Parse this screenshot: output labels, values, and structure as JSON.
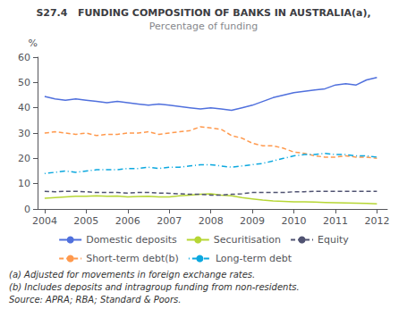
{
  "chart_data": {
    "type": "line",
    "title": "S27.4   FUNDING COMPOSITION OF BANKS IN AUSTRALIA(a),",
    "subtitle": "Percentage of funding",
    "y_label": "%",
    "footnotes": [
      "(a) Adjusted for movements in foreign exchange rates.",
      "(b) Includes deposits and intragroup funding from non-residents.",
      "Source: APRA; RBA; Standard & Poors."
    ],
    "xlim": [
      2003.83,
      2012.25
    ],
    "xticks": [
      2004,
      2005,
      2006,
      2007,
      2008,
      2009,
      2010,
      2011,
      2012
    ],
    "ylim": [
      0,
      60
    ],
    "yticks": [
      0,
      10,
      20,
      30,
      40,
      50,
      60
    ],
    "grid": false,
    "legend": "bottom",
    "x": [
      2004.0,
      2004.25,
      2004.5,
      2004.75,
      2005.0,
      2005.25,
      2005.5,
      2005.75,
      2006.0,
      2006.25,
      2006.5,
      2006.75,
      2007.0,
      2007.25,
      2007.5,
      2007.75,
      2008.0,
      2008.25,
      2008.5,
      2008.75,
      2009.0,
      2009.25,
      2009.5,
      2009.75,
      2010.0,
      2010.25,
      2010.5,
      2010.75,
      2011.0,
      2011.25,
      2011.5,
      2011.75,
      2012.0
    ],
    "series": [
      {
        "name": "Domestic deposits",
        "line_style": "solid",
        "values": [
          44.5,
          43.5,
          43.0,
          43.5,
          43.0,
          42.5,
          42.0,
          42.5,
          42.0,
          41.5,
          41.0,
          41.5,
          41.0,
          40.5,
          40.0,
          39.5,
          40.0,
          39.5,
          39.0,
          40.0,
          41.0,
          42.5,
          44.0,
          45.0,
          46.0,
          46.5,
          47.0,
          47.5,
          49.0,
          49.5,
          49.0,
          51.0,
          52.0
        ]
      },
      {
        "name": "Securitisation",
        "line_style": "solid",
        "values": [
          4.2,
          4.5,
          4.8,
          5.0,
          5.0,
          5.2,
          5.0,
          5.1,
          4.8,
          4.9,
          5.0,
          4.8,
          4.8,
          5.2,
          5.5,
          5.8,
          6.0,
          5.5,
          5.2,
          4.5,
          4.0,
          3.5,
          3.2,
          3.0,
          2.8,
          2.8,
          2.7,
          2.6,
          2.5,
          2.4,
          2.3,
          2.2,
          2.0
        ]
      },
      {
        "name": "Equity",
        "line_style": "dashed",
        "values": [
          7.0,
          6.8,
          7.0,
          7.0,
          6.8,
          6.5,
          6.5,
          6.5,
          6.3,
          6.5,
          6.5,
          6.3,
          6.2,
          6.0,
          5.8,
          5.8,
          5.5,
          5.5,
          5.8,
          6.0,
          6.5,
          6.5,
          6.5,
          6.5,
          6.8,
          6.8,
          7.0,
          7.0,
          7.0,
          7.0,
          7.0,
          7.0,
          7.0
        ]
      },
      {
        "name": "Short-term debt(b)",
        "line_style": "dashed",
        "values": [
          30.0,
          30.5,
          30.0,
          29.5,
          30.0,
          29.0,
          29.5,
          29.5,
          30.0,
          30.0,
          30.5,
          29.5,
          30.0,
          30.5,
          31.0,
          32.5,
          32.0,
          31.5,
          29.0,
          28.0,
          26.0,
          25.0,
          25.0,
          24.0,
          22.5,
          22.0,
          21.0,
          20.5,
          20.5,
          21.0,
          20.5,
          20.5,
          20.0
        ]
      },
      {
        "name": "Long-term debt",
        "line_style": "dashdot",
        "values": [
          14.0,
          14.5,
          15.0,
          14.5,
          15.0,
          15.5,
          15.5,
          15.5,
          16.0,
          16.0,
          16.5,
          16.0,
          16.5,
          16.5,
          17.0,
          17.5,
          17.5,
          17.0,
          16.5,
          17.0,
          17.5,
          18.0,
          19.0,
          20.0,
          21.0,
          21.5,
          21.5,
          22.0,
          21.5,
          21.5,
          21.0,
          21.0,
          20.5
        ]
      }
    ]
  }
}
